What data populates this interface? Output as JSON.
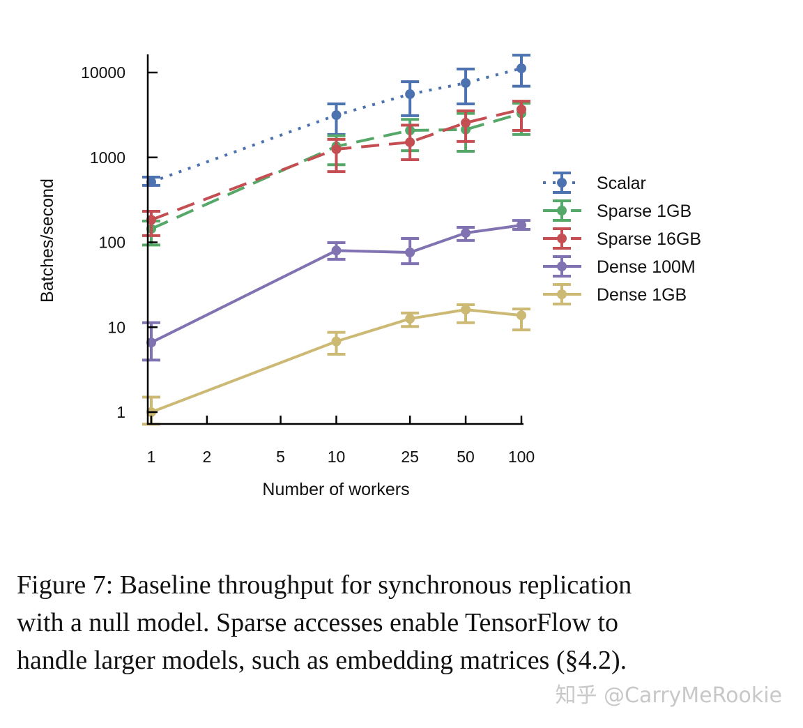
{
  "chart_data": {
    "type": "line",
    "title": "",
    "xlabel": "Number of workers",
    "ylabel": "Batches/second",
    "x_scale": "log",
    "y_scale": "log",
    "xlim": [
      1,
      100
    ],
    "ylim": [
      1,
      10000
    ],
    "x_ticks": [
      1,
      2,
      5,
      10,
      25,
      50,
      100
    ],
    "x_tick_labels": [
      "1",
      "2",
      "5",
      "10",
      "25",
      "50",
      "100"
    ],
    "y_ticks": [
      1,
      10,
      100,
      1000,
      10000
    ],
    "y_tick_labels": [
      "1",
      "10",
      "100",
      "1000",
      "10000"
    ],
    "grid": false,
    "legend_position": "right",
    "x": [
      1,
      10,
      25,
      50,
      100
    ],
    "series": [
      {
        "name": "Scalar",
        "color": "#4c72b0",
        "dash": "dotted",
        "values": [
          513,
          3150,
          5560,
          7530,
          11200
        ],
        "err_low": [
          468,
          1860,
          3100,
          4270,
          6900
        ],
        "err_high": [
          586,
          4270,
          7800,
          11000,
          16000
        ]
      },
      {
        "name": "Sparse 1GB",
        "color": "#55a868",
        "dash": "dashed",
        "values": [
          144,
          1350,
          2080,
          2130,
          3300
        ],
        "err_low": [
          93,
          820,
          1200,
          1180,
          1860
        ],
        "err_high": [
          178,
          1800,
          2800,
          3300,
          4350
        ]
      },
      {
        "name": "Sparse 16GB",
        "color": "#c44e52",
        "dash": "dashed",
        "values": [
          184,
          1250,
          1510,
          2560,
          3670
        ],
        "err_low": [
          120,
          680,
          940,
          1540,
          2080
        ],
        "err_high": [
          232,
          1630,
          2400,
          3530,
          4590
        ]
      },
      {
        "name": "Dense 100M",
        "color": "#8172b2",
        "dash": "solid",
        "values": [
          6.6,
          80,
          76,
          129,
          159
        ],
        "err_low": [
          4.1,
          63,
          56,
          105,
          142
        ],
        "err_high": [
          11.3,
          99,
          111,
          150,
          181
        ]
      },
      {
        "name": "Dense 1GB",
        "color": "#ccb974",
        "dash": "solid",
        "values": [
          1,
          6.8,
          12.6,
          16.1,
          13.8
        ],
        "err_low": [
          0.72,
          4.8,
          10.2,
          11.3,
          9.3
        ],
        "err_high": [
          1.5,
          8.7,
          14.7,
          18.4,
          16.4
        ]
      }
    ]
  },
  "caption": {
    "lines": [
      "Figure 7: Baseline throughput for synchronous replication",
      "with a null model. Sparse accesses enable TensorFlow to",
      "handle larger models, such as embedding matrices (§4.2)."
    ]
  },
  "watermark": "知乎 @CarryMeRookie"
}
